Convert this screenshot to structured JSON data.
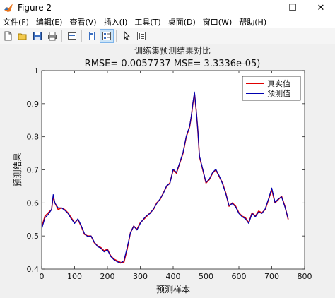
{
  "window": {
    "title": "Figure 2",
    "controls": {
      "minimize": "—",
      "maximize": "☐",
      "close": "✕"
    }
  },
  "menu": [
    "文件(F)",
    "编辑(E)",
    "查看(V)",
    "插入(I)",
    "工具(T)",
    "桌面(D)",
    "窗口(W)",
    "帮助(H)"
  ],
  "toolbar": {
    "icons": [
      "new-figure-icon",
      "open-icon",
      "save-icon",
      "print-icon",
      "link-plot-icon",
      "dock-icon",
      "property-editor-icon",
      "pointer-icon",
      "data-cursor-icon"
    ]
  },
  "chart_data": {
    "type": "line",
    "title": "训练集预测结果对比",
    "subtitle": "RMSE= 0.0057737 MSE= 3.3336e-05)",
    "xlabel": "预测样本",
    "ylabel": "预测结果",
    "xlim": [
      0,
      800
    ],
    "ylim": [
      0.4,
      1
    ],
    "xticks": [
      0,
      100,
      200,
      300,
      400,
      500,
      600,
      700,
      800
    ],
    "yticks": [
      0.4,
      0.5,
      0.6,
      0.7,
      0.8,
      0.9,
      1
    ],
    "grid": false,
    "legend": "top-right",
    "series": [
      {
        "name": "真实值",
        "color": "#e00000",
        "x": [
          1,
          10,
          20,
          30,
          35,
          40,
          50,
          60,
          70,
          80,
          90,
          100,
          110,
          120,
          130,
          140,
          150,
          160,
          170,
          180,
          190,
          200,
          210,
          220,
          230,
          240,
          250,
          260,
          270,
          280,
          290,
          300,
          310,
          320,
          330,
          340,
          350,
          360,
          370,
          380,
          390,
          400,
          410,
          420,
          430,
          440,
          450,
          455,
          460,
          465,
          470,
          475,
          480,
          490,
          500,
          510,
          520,
          530,
          540,
          550,
          560,
          570,
          580,
          590,
          600,
          610,
          620,
          630,
          640,
          650,
          660,
          670,
          680,
          690,
          700,
          710,
          720,
          730,
          740,
          750
        ],
        "values": [
          0.53,
          0.56,
          0.57,
          0.58,
          0.62,
          0.6,
          0.58,
          0.585,
          0.58,
          0.57,
          0.555,
          0.54,
          0.55,
          0.53,
          0.505,
          0.5,
          0.5,
          0.48,
          0.47,
          0.465,
          0.455,
          0.46,
          0.44,
          0.43,
          0.425,
          0.42,
          0.42,
          0.46,
          0.51,
          0.53,
          0.52,
          0.54,
          0.55,
          0.56,
          0.57,
          0.58,
          0.6,
          0.61,
          0.63,
          0.65,
          0.66,
          0.7,
          0.69,
          0.72,
          0.75,
          0.8,
          0.83,
          0.86,
          0.9,
          0.93,
          0.88,
          0.82,
          0.74,
          0.7,
          0.66,
          0.67,
          0.69,
          0.7,
          0.68,
          0.66,
          0.63,
          0.59,
          0.6,
          0.59,
          0.57,
          0.56,
          0.555,
          0.54,
          0.57,
          0.56,
          0.575,
          0.57,
          0.58,
          0.61,
          0.64,
          0.6,
          0.61,
          0.62,
          0.59,
          0.55
        ]
      },
      {
        "name": "预测值",
        "color": "#0000b0",
        "x": [
          1,
          10,
          20,
          30,
          35,
          40,
          50,
          60,
          70,
          80,
          90,
          100,
          110,
          120,
          130,
          140,
          150,
          160,
          170,
          180,
          190,
          200,
          210,
          220,
          230,
          240,
          250,
          260,
          270,
          280,
          290,
          300,
          310,
          320,
          330,
          340,
          350,
          360,
          370,
          380,
          390,
          400,
          410,
          420,
          430,
          440,
          450,
          455,
          460,
          465,
          470,
          475,
          480,
          490,
          500,
          510,
          520,
          530,
          540,
          550,
          560,
          570,
          580,
          590,
          600,
          610,
          620,
          630,
          640,
          650,
          660,
          670,
          680,
          690,
          700,
          710,
          720,
          730,
          740,
          750
        ],
        "values": [
          0.525,
          0.555,
          0.565,
          0.58,
          0.625,
          0.6,
          0.585,
          0.585,
          0.578,
          0.568,
          0.552,
          0.538,
          0.552,
          0.532,
          0.507,
          0.498,
          0.5,
          0.482,
          0.468,
          0.463,
          0.452,
          0.458,
          0.438,
          0.428,
          0.422,
          0.418,
          0.425,
          0.465,
          0.51,
          0.53,
          0.518,
          0.538,
          0.552,
          0.562,
          0.568,
          0.582,
          0.598,
          0.612,
          0.628,
          0.652,
          0.658,
          0.702,
          0.692,
          0.722,
          0.752,
          0.802,
          0.832,
          0.862,
          0.902,
          0.935,
          0.882,
          0.82,
          0.742,
          0.702,
          0.662,
          0.672,
          0.692,
          0.702,
          0.682,
          0.658,
          0.628,
          0.592,
          0.598,
          0.588,
          0.568,
          0.558,
          0.552,
          0.538,
          0.568,
          0.558,
          0.572,
          0.568,
          0.582,
          0.612,
          0.645,
          0.602,
          0.612,
          0.618,
          0.588,
          0.552
        ]
      }
    ]
  }
}
